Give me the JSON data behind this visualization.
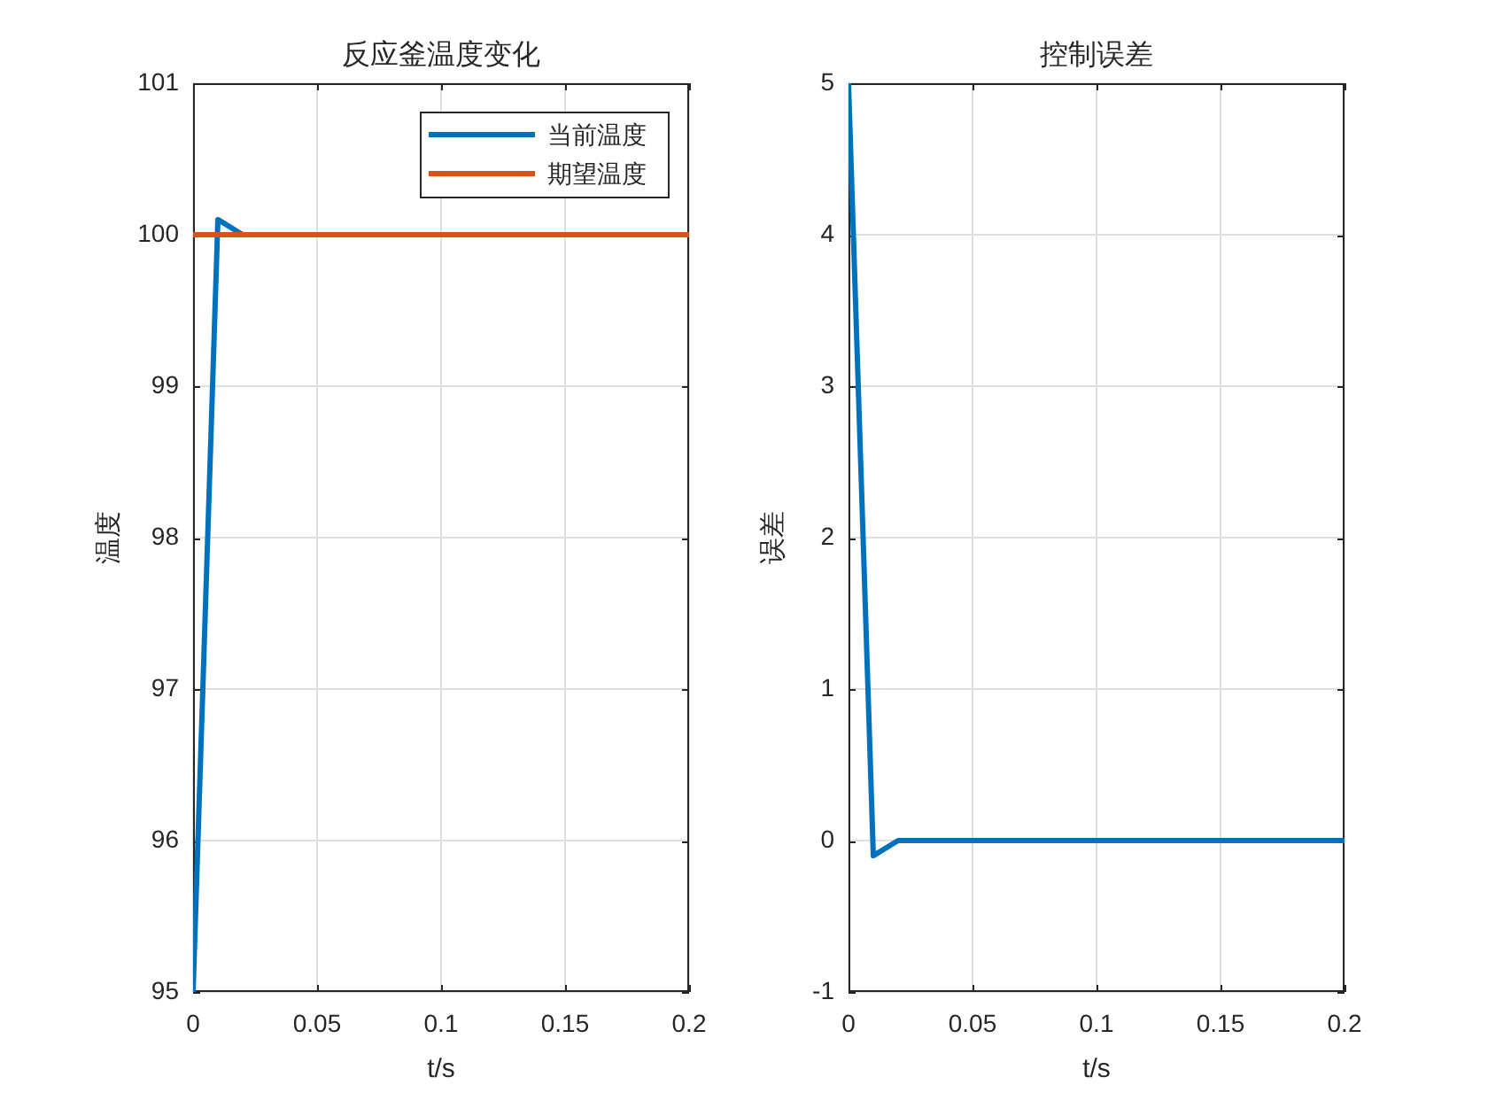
{
  "chart_data": [
    {
      "type": "line",
      "title": "反应釜温度变化",
      "xlabel": "t/s",
      "ylabel": "温度",
      "xlim": [
        0,
        0.2
      ],
      "xticks": [
        0,
        0.05,
        0.1,
        0.15,
        0.2
      ],
      "ylim": [
        95,
        101
      ],
      "yticks": [
        95,
        96,
        97,
        98,
        99,
        100,
        101
      ],
      "grid": true,
      "legend": "top right",
      "series": [
        {
          "name": "当前温度",
          "color": "#0072bd",
          "x": [
            0,
            0.01,
            0.02
          ],
          "values": [
            95,
            100.1,
            100
          ]
        },
        {
          "name": "期望温度",
          "color": "#d95319",
          "x": [
            0,
            0.2
          ],
          "values": [
            100,
            100
          ]
        }
      ]
    },
    {
      "type": "line",
      "title": "控制误差",
      "xlabel": "t/s",
      "ylabel": "误差",
      "xlim": [
        0,
        0.2
      ],
      "xticks": [
        0,
        0.05,
        0.1,
        0.15,
        0.2
      ],
      "ylim": [
        -1,
        5
      ],
      "yticks": [
        -1,
        0,
        1,
        2,
        3,
        4,
        5
      ],
      "grid": true,
      "series": [
        {
          "color": "#0072bd",
          "x": [
            0,
            0.01,
            0.02,
            0.2
          ],
          "values": [
            5,
            -0.1,
            0,
            0
          ]
        }
      ]
    }
  ]
}
